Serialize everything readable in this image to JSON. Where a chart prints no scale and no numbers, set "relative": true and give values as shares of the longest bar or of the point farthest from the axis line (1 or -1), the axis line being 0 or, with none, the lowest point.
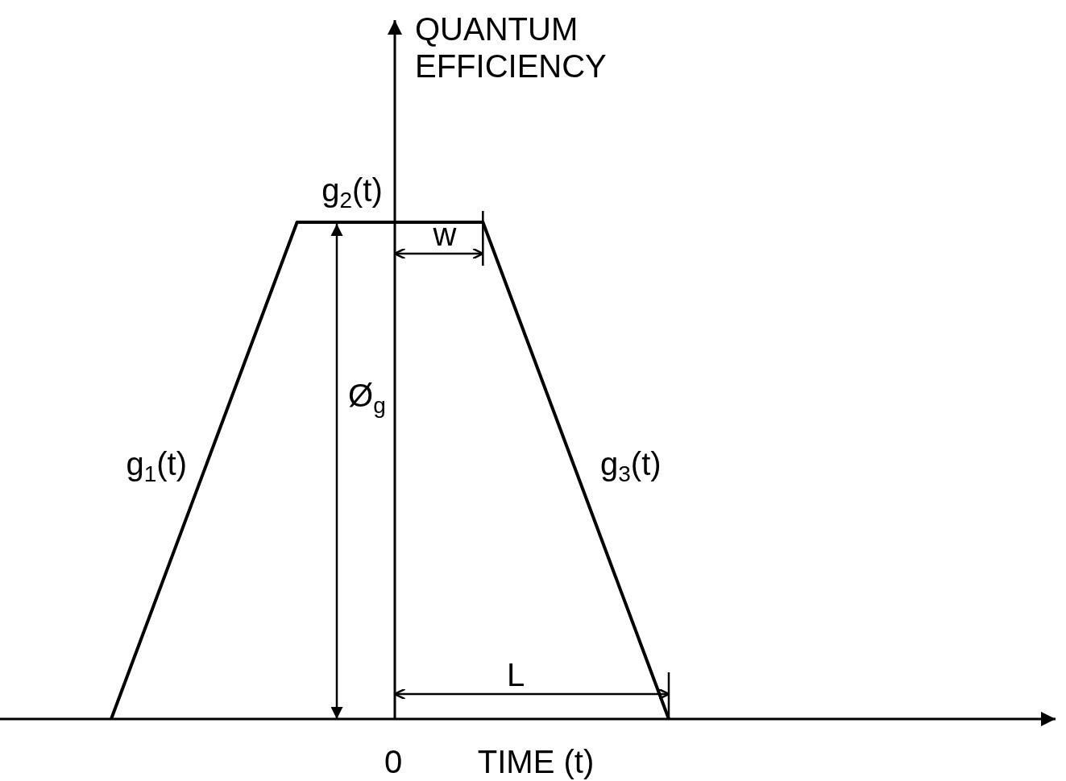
{
  "chart_data": {
    "type": "line",
    "relative": true,
    "xlabel": "TIME (t)",
    "ylabel": "QUANTUM EFFICIENCY",
    "marker": "none",
    "line_style": "solid",
    "categories": [
      null,
      null,
      null,
      null
    ],
    "series": [
      {
        "color": "#000000",
        "values": [
          0,
          1,
          1,
          0
        ]
      }
    ],
    "annotations": [
      "g$_{1}$(t)",
      "g$_{2}$(t)",
      "g$_{3}$(t)",
      "Ø$_{g}$",
      "w",
      "L",
      "0"
    ]
  }
}
